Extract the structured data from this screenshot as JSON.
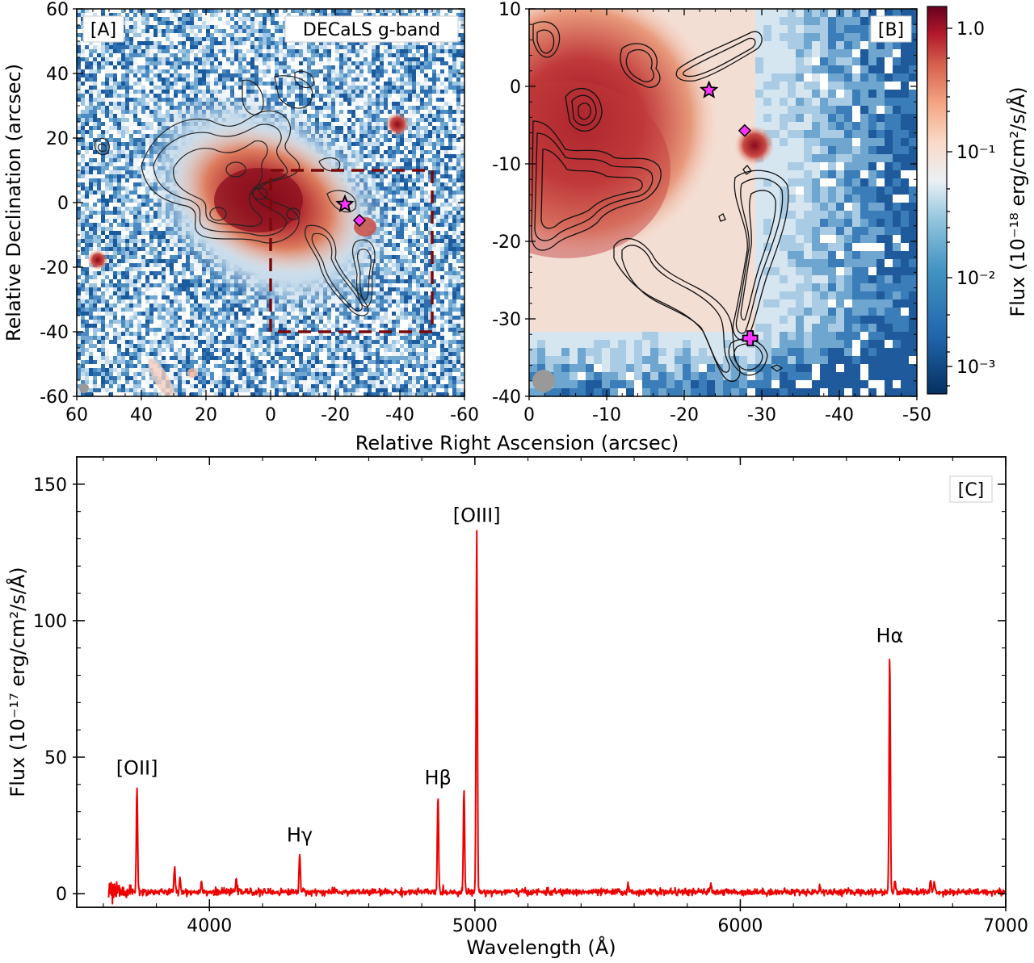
{
  "figure": {
    "panel_a_label": "[A]",
    "panel_a_caption": "DECaLS g-band",
    "panel_b_label": "[B]",
    "panel_c_label": "[C]",
    "map_xlabel": "Relative Right Ascension (arcsec)",
    "map_ylabel": "Relative Declination (arcsec)",
    "colorbar_label": "Flux (10⁻¹⁸ erg/cm²/s/Å)",
    "colorbar_ticks": [
      "1.0",
      "10⁻¹",
      "10⁻²",
      "10⁻³"
    ],
    "colors": {
      "spectrum": "#ee0000",
      "box": "#7a0a0a",
      "marker": "#ff33ff",
      "beam": "#999999"
    }
  },
  "chart_data": [
    {
      "type": "heatmap",
      "label": "[A]",
      "annotation": "DECaLS g-band",
      "xlabel": "Relative Right Ascension (arcsec)",
      "ylabel": "Relative Declination (arcsec)",
      "xlim": [
        60,
        -60
      ],
      "ylim": [
        -60,
        60
      ],
      "xticks": [
        "60",
        "40",
        "20",
        "0",
        "-20",
        "-40",
        "-60"
      ],
      "yticks": [
        "60",
        "40",
        "20",
        "0",
        "-20",
        "-40",
        "-60"
      ],
      "zoom_box": {
        "x": [
          0,
          -50
        ],
        "y": [
          -40,
          10
        ]
      },
      "markers": [
        {
          "shape": "star",
          "x": -23,
          "y": -0.5
        },
        {
          "shape": "diamond",
          "x": -27.5,
          "y": -5.5
        }
      ],
      "point_sources": [
        {
          "x": -39,
          "y": 24
        },
        {
          "x": 54,
          "y": -18
        }
      ]
    },
    {
      "type": "heatmap",
      "label": "[B]",
      "xlabel": "Relative Right Ascension (arcsec)",
      "xlim": [
        0,
        -50
      ],
      "ylim": [
        -40,
        10
      ],
      "xticks": [
        "0",
        "-10",
        "-20",
        "-30",
        "-40",
        "-50"
      ],
      "yticks": [
        "10",
        "0",
        "-10",
        "-20",
        "-30",
        "-40"
      ],
      "colorbar": {
        "label": "Flux (10⁻¹⁸ erg/cm²/s/Å)",
        "scale": "log",
        "range": [
          0.0005,
          1.5
        ]
      },
      "markers": [
        {
          "shape": "star",
          "x": -23.2,
          "y": -0.5
        },
        {
          "shape": "diamond",
          "x": -27.8,
          "y": -5.7
        },
        {
          "shape": "plus",
          "x": -28.5,
          "y": -32.5
        }
      ]
    },
    {
      "type": "line",
      "label": "[C]",
      "xlabel": "Wavelength (Å)",
      "ylabel": "Flux (10⁻¹⁷ erg/cm²/s/Å)",
      "xlim": [
        3500,
        7000
      ],
      "ylim": [
        -5,
        160
      ],
      "xticks": [
        "4000",
        "5000",
        "6000",
        "7000"
      ],
      "yticks": [
        "0",
        "50",
        "100",
        "150"
      ],
      "series_color": "#ee0000",
      "continuum_start": 3620,
      "lines": [
        {
          "x": 3727,
          "y": 39.5,
          "label": "[OII]"
        },
        {
          "x": 4340,
          "y": 15,
          "label": "Hγ"
        },
        {
          "x": 4861,
          "y": 36,
          "label": "Hβ"
        },
        {
          "x": 4959,
          "y": 38.5
        },
        {
          "x": 5007,
          "y": 132,
          "label": "[OIII]"
        },
        {
          "x": 6563,
          "y": 88,
          "label": "Hα"
        },
        {
          "x": 3869,
          "y": 10
        },
        {
          "x": 3889,
          "y": 6
        },
        {
          "x": 3970,
          "y": 5
        },
        {
          "x": 4101,
          "y": 6.5
        },
        {
          "x": 5577,
          "y": 3
        },
        {
          "x": 5890,
          "y": 4
        },
        {
          "x": 6300,
          "y": 3
        },
        {
          "x": 6583,
          "y": 5
        },
        {
          "x": 6717,
          "y": 5
        },
        {
          "x": 6731,
          "y": 4
        }
      ]
    }
  ]
}
